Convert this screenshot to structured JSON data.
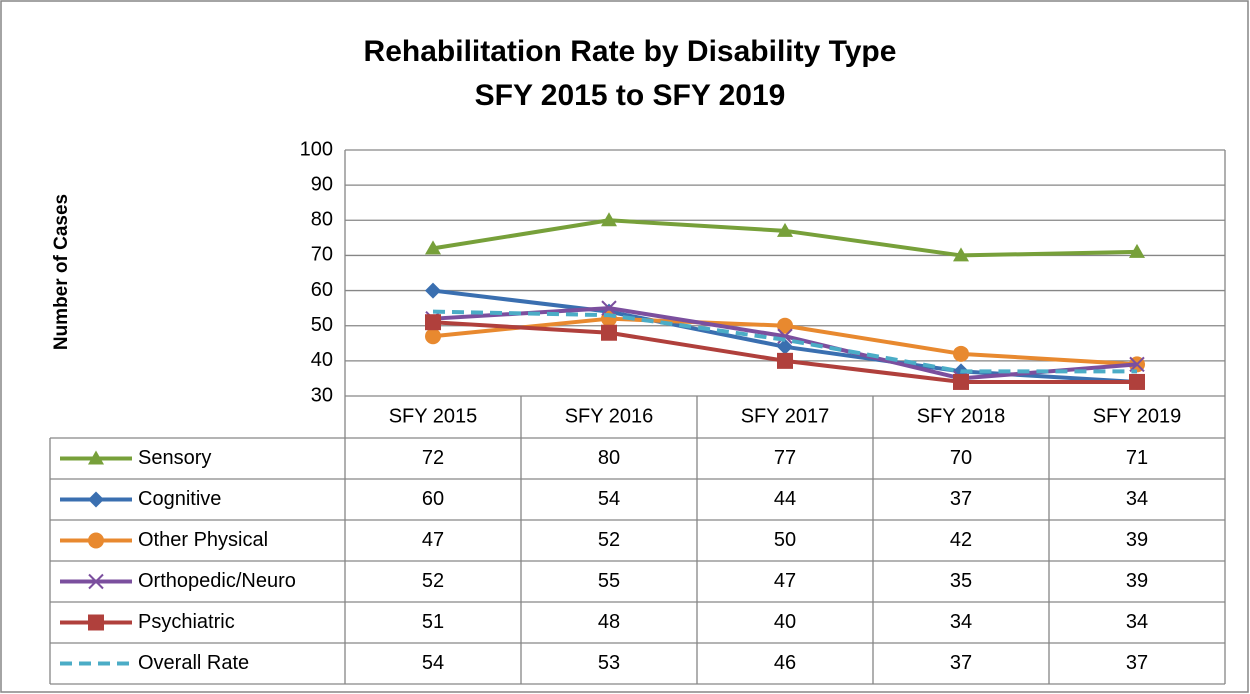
{
  "chart_data": {
    "type": "line",
    "title": [
      "Rehabilitation Rate by Disability Type",
      "SFY 2015 to SFY 2019"
    ],
    "y_label": "Number of Cases",
    "categories": [
      "SFY 2015",
      "SFY 2016",
      "SFY 2017",
      "SFY 2018",
      "SFY 2019"
    ],
    "series": [
      {
        "name": "Sensory",
        "color": "#77a03a",
        "marker": "triangle",
        "values": [
          72,
          80,
          77,
          70,
          71
        ]
      },
      {
        "name": "Cognitive",
        "color": "#3a6fb0",
        "marker": "diamond",
        "values": [
          60,
          54,
          44,
          37,
          34
        ]
      },
      {
        "name": "Other Physical",
        "color": "#e8892f",
        "marker": "circle",
        "values": [
          47,
          52,
          50,
          42,
          39
        ]
      },
      {
        "name": "Orthopedic/Neuro",
        "color": "#7b4f9e",
        "marker": "x",
        "values": [
          52,
          55,
          47,
          35,
          39
        ]
      },
      {
        "name": "Psychiatric",
        "color": "#b0403c",
        "marker": "square",
        "values": [
          51,
          48,
          40,
          34,
          34
        ]
      },
      {
        "name": "Overall Rate",
        "color": "#4bacc6",
        "marker": "none",
        "dash": true,
        "values": [
          54,
          53,
          46,
          37,
          37
        ]
      }
    ],
    "ylim": [
      30,
      100
    ],
    "yticks": [
      30,
      40,
      50,
      60,
      70,
      80,
      90,
      100
    ],
    "grid": true,
    "data_table": true
  }
}
